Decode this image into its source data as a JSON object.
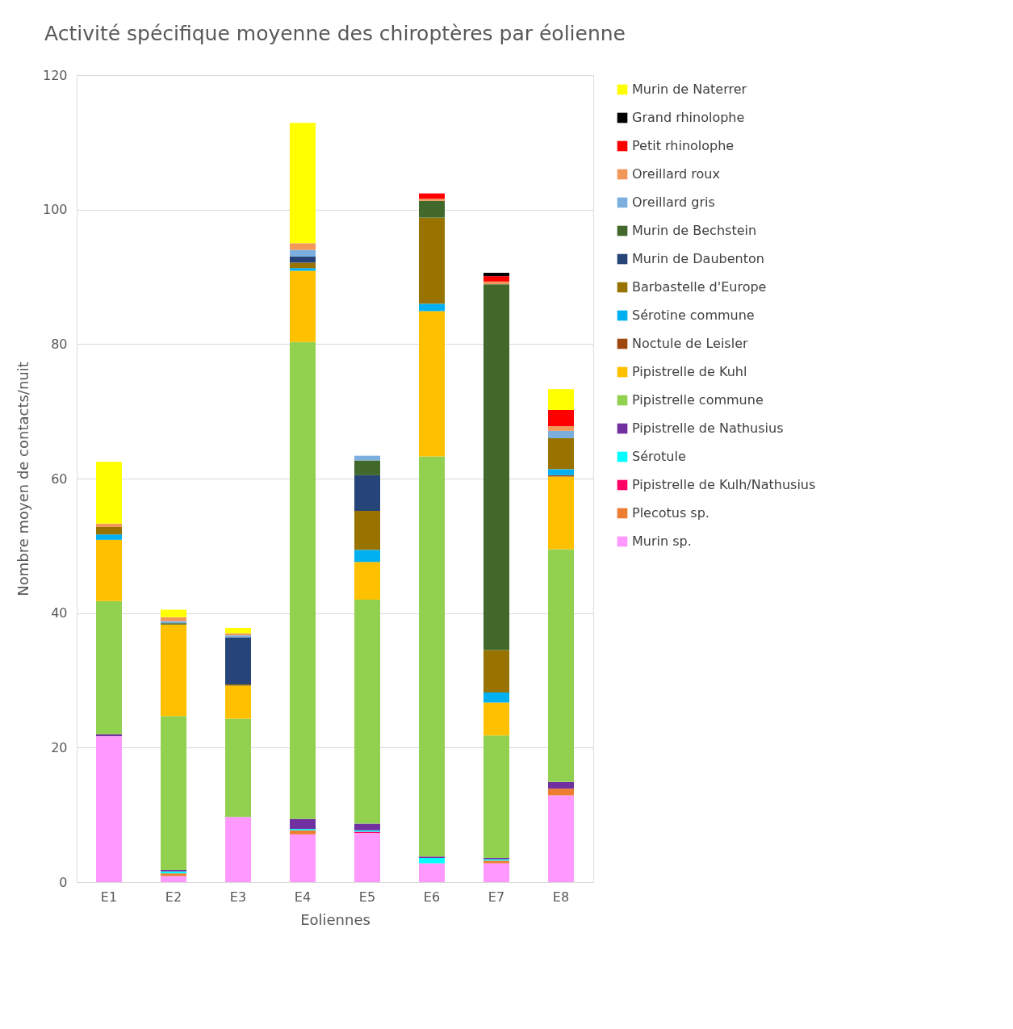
{
  "chart_data": {
    "type": "bar",
    "stacked": true,
    "title": "Activité spécifique moyenne des chiroptères par éolienne",
    "xlabel": "Eoliennes",
    "ylabel": "Nombre moyen de contacts/nuit",
    "categories": [
      "E1",
      "E2",
      "E3",
      "E4",
      "E5",
      "E6",
      "E7",
      "E8"
    ],
    "ylim": [
      0,
      120
    ],
    "yticks": [
      0,
      20,
      40,
      60,
      80,
      100,
      120
    ],
    "grid": "y",
    "legend": "right",
    "series": [
      {
        "name": "Murin sp.",
        "color": "#ff99ff",
        "values": [
          21.7,
          0.9,
          9.7,
          7.1,
          7.3,
          2.8,
          2.8,
          12.9
        ]
      },
      {
        "name": "Plecotus sp.",
        "color": "#ed7d31",
        "values": [
          null,
          0.4,
          null,
          0.6,
          null,
          null,
          0.4,
          1.0
        ]
      },
      {
        "name": "Pipistrelle de Kulh/Nathusius",
        "color": "#ff0066",
        "values": [
          null,
          null,
          null,
          null,
          0.2,
          null,
          null,
          null
        ]
      },
      {
        "name": "Sérotule",
        "color": "#00ffff",
        "values": [
          null,
          0.3,
          null,
          0.2,
          0.2,
          0.8,
          0.2,
          null
        ]
      },
      {
        "name": "Pipistrelle de Nathusius",
        "color": "#7030a0",
        "values": [
          0.3,
          0.2,
          null,
          1.5,
          1.0,
          0.2,
          0.2,
          1.0
        ]
      },
      {
        "name": "Pipistrelle commune",
        "color": "#92d050",
        "values": [
          19.8,
          22.9,
          14.6,
          70.9,
          33.3,
          59.5,
          18.2,
          34.6
        ]
      },
      {
        "name": "Pipistrelle de Kuhl",
        "color": "#ffc000",
        "values": [
          9.1,
          13.6,
          4.9,
          10.6,
          5.6,
          21.6,
          4.9,
          10.8
        ]
      },
      {
        "name": "Noctule de Leisler",
        "color": "#9e480e",
        "values": [
          null,
          null,
          null,
          null,
          null,
          null,
          null,
          0.2
        ]
      },
      {
        "name": "Sérotine commune",
        "color": "#00b0f0",
        "values": [
          0.8,
          null,
          null,
          0.4,
          1.8,
          1.1,
          1.5,
          0.9
        ]
      },
      {
        "name": "Barbastelle d'Europe",
        "color": "#997300",
        "values": [
          1.1,
          null,
          0.2,
          0.8,
          5.8,
          12.8,
          6.3,
          4.6
        ]
      },
      {
        "name": "Murin de Daubenton",
        "color": "#264478",
        "values": [
          null,
          null,
          7.0,
          0.9,
          5.3,
          null,
          null,
          null
        ]
      },
      {
        "name": "Murin de Bechstein",
        "color": "#43682b",
        "values": [
          null,
          0.2,
          null,
          null,
          2.2,
          2.5,
          54.4,
          null
        ]
      },
      {
        "name": "Oreillard gris",
        "color": "#7cafdd",
        "values": [
          null,
          0.3,
          0.3,
          1.0,
          0.7,
          null,
          null,
          1.1
        ]
      },
      {
        "name": "Oreillard roux",
        "color": "#f1975a",
        "values": [
          0.5,
          0.6,
          0.3,
          1.0,
          null,
          0.3,
          0.4,
          0.7
        ]
      },
      {
        "name": "Petit rhinolophe",
        "color": "#ff0000",
        "values": [
          null,
          null,
          null,
          null,
          null,
          0.8,
          0.8,
          2.4
        ]
      },
      {
        "name": "Grand rhinolophe",
        "color": "#000000",
        "values": [
          null,
          null,
          null,
          null,
          null,
          null,
          0.5,
          null
        ]
      },
      {
        "name": "Murin de Naterrer",
        "color": "#ffff00",
        "values": [
          9.2,
          1.1,
          0.8,
          17.9,
          null,
          null,
          null,
          3.1
        ]
      }
    ]
  }
}
